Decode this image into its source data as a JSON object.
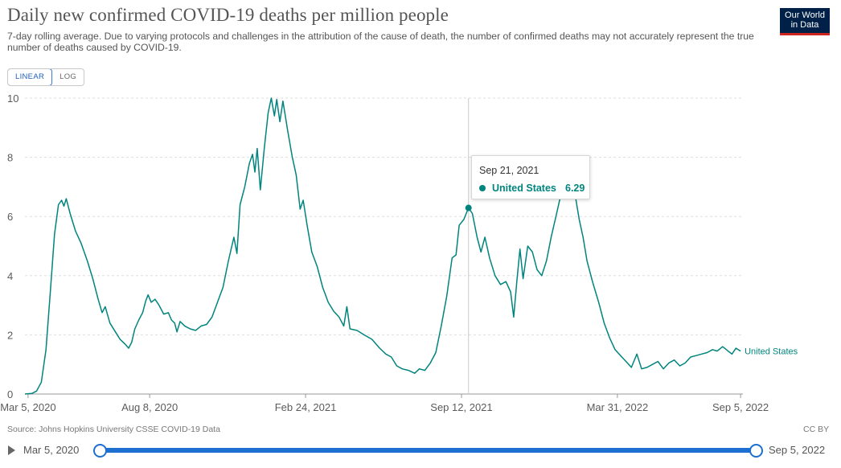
{
  "header": {
    "title": "Daily new confirmed COVID-19 deaths per million people",
    "subtitle": "7-day rolling average. Due to varying protocols and challenges in the attribution of the cause of death, the number of confirmed deaths may not accurately represent the true number of deaths caused by COVID-19.",
    "logo_line1": "Our World",
    "logo_line2": "in Data"
  },
  "controls": {
    "linear_label": "LINEAR",
    "log_label": "LOG",
    "active_scale": "linear"
  },
  "tooltip": {
    "date": "Sep 21, 2021",
    "series": "United States",
    "value": "6.29"
  },
  "footer": {
    "source": "Source: Johns Hopkins University CSSE COVID-19 Data",
    "license": "CC BY"
  },
  "timeline": {
    "start_label": "Mar 5, 2020",
    "end_label": "Sep 5, 2022"
  },
  "colors": {
    "series": "#00847e",
    "grid": "#dddddd",
    "axis": "#5b5b5b",
    "accent_blue": "#1d6fd1"
  },
  "chart_data": {
    "type": "line",
    "title": "Daily new confirmed COVID-19 deaths per million people",
    "xlabel": "",
    "ylabel": "",
    "ylim": [
      0,
      10
    ],
    "yticks": [
      0,
      2,
      4,
      6,
      8,
      10
    ],
    "xlim": [
      "2020-03-01",
      "2022-09-08"
    ],
    "xticks": [
      {
        "date": "2020-03-05",
        "label": "Mar 5, 2020"
      },
      {
        "date": "2020-08-08",
        "label": "Aug 8, 2020"
      },
      {
        "date": "2021-02-24",
        "label": "Feb 24, 2021"
      },
      {
        "date": "2021-09-12",
        "label": "Sep 12, 2021"
      },
      {
        "date": "2022-03-31",
        "label": "Mar 31, 2022"
      },
      {
        "date": "2022-09-05",
        "label": "Sep 5, 2022"
      }
    ],
    "grid": true,
    "highlight": {
      "date": "2021-09-21",
      "value": 6.29
    },
    "series": [
      {
        "name": "United States",
        "end_label": "United States",
        "points": [
          [
            "2020-03-01",
            0
          ],
          [
            "2020-03-10",
            0.02
          ],
          [
            "2020-03-16",
            0.1
          ],
          [
            "2020-03-22",
            0.4
          ],
          [
            "2020-03-28",
            1.5
          ],
          [
            "2020-04-03",
            3.6
          ],
          [
            "2020-04-08",
            5.4
          ],
          [
            "2020-04-13",
            6.4
          ],
          [
            "2020-04-17",
            6.55
          ],
          [
            "2020-04-20",
            6.35
          ],
          [
            "2020-04-23",
            6.6
          ],
          [
            "2020-04-28",
            6.1
          ],
          [
            "2020-05-05",
            5.5
          ],
          [
            "2020-05-12",
            5.1
          ],
          [
            "2020-05-20",
            4.5
          ],
          [
            "2020-05-27",
            3.9
          ],
          [
            "2020-06-03",
            3.2
          ],
          [
            "2020-06-08",
            2.75
          ],
          [
            "2020-06-12",
            2.95
          ],
          [
            "2020-06-18",
            2.4
          ],
          [
            "2020-06-25",
            2.1
          ],
          [
            "2020-07-01",
            1.85
          ],
          [
            "2020-07-07",
            1.7
          ],
          [
            "2020-07-12",
            1.55
          ],
          [
            "2020-07-16",
            1.75
          ],
          [
            "2020-07-20",
            2.2
          ],
          [
            "2020-07-25",
            2.5
          ],
          [
            "2020-07-30",
            2.75
          ],
          [
            "2020-08-03",
            3.15
          ],
          [
            "2020-08-06",
            3.35
          ],
          [
            "2020-08-10",
            3.1
          ],
          [
            "2020-08-15",
            3.2
          ],
          [
            "2020-08-20",
            3.0
          ],
          [
            "2020-08-26",
            2.7
          ],
          [
            "2020-09-01",
            2.75
          ],
          [
            "2020-09-05",
            2.5
          ],
          [
            "2020-09-09",
            2.4
          ],
          [
            "2020-09-12",
            2.1
          ],
          [
            "2020-09-16",
            2.45
          ],
          [
            "2020-09-22",
            2.3
          ],
          [
            "2020-09-29",
            2.2
          ],
          [
            "2020-10-06",
            2.15
          ],
          [
            "2020-10-13",
            2.3
          ],
          [
            "2020-10-20",
            2.35
          ],
          [
            "2020-10-27",
            2.6
          ],
          [
            "2020-11-03",
            3.1
          ],
          [
            "2020-11-10",
            3.6
          ],
          [
            "2020-11-17",
            4.5
          ],
          [
            "2020-11-24",
            5.3
          ],
          [
            "2020-11-28",
            4.75
          ],
          [
            "2020-12-02",
            6.4
          ],
          [
            "2020-12-08",
            7.0
          ],
          [
            "2020-12-14",
            7.8
          ],
          [
            "2020-12-18",
            8.1
          ],
          [
            "2020-12-21",
            7.5
          ],
          [
            "2020-12-24",
            8.3
          ],
          [
            "2020-12-28",
            6.9
          ],
          [
            "2021-01-02",
            8.3
          ],
          [
            "2021-01-07",
            9.5
          ],
          [
            "2021-01-11",
            10.0
          ],
          [
            "2021-01-15",
            9.4
          ],
          [
            "2021-01-18",
            9.95
          ],
          [
            "2021-01-22",
            9.2
          ],
          [
            "2021-01-26",
            9.9
          ],
          [
            "2021-02-01",
            8.9
          ],
          [
            "2021-02-07",
            8.0
          ],
          [
            "2021-02-12",
            7.4
          ],
          [
            "2021-02-17",
            6.25
          ],
          [
            "2021-02-21",
            6.55
          ],
          [
            "2021-02-26",
            5.7
          ],
          [
            "2021-03-04",
            4.8
          ],
          [
            "2021-03-11",
            4.3
          ],
          [
            "2021-03-18",
            3.6
          ],
          [
            "2021-03-25",
            3.1
          ],
          [
            "2021-04-01",
            2.8
          ],
          [
            "2021-04-08",
            2.6
          ],
          [
            "2021-04-14",
            2.3
          ],
          [
            "2021-04-18",
            2.95
          ],
          [
            "2021-04-22",
            2.2
          ],
          [
            "2021-05-01",
            2.15
          ],
          [
            "2021-05-10",
            2.0
          ],
          [
            "2021-05-20",
            1.85
          ],
          [
            "2021-05-30",
            1.55
          ],
          [
            "2021-06-07",
            1.35
          ],
          [
            "2021-06-14",
            1.25
          ],
          [
            "2021-06-21",
            0.95
          ],
          [
            "2021-06-28",
            0.85
          ],
          [
            "2021-07-06",
            0.8
          ],
          [
            "2021-07-14",
            0.7
          ],
          [
            "2021-07-20",
            0.85
          ],
          [
            "2021-07-27",
            0.8
          ],
          [
            "2021-08-03",
            1.05
          ],
          [
            "2021-08-10",
            1.4
          ],
          [
            "2021-08-17",
            2.3
          ],
          [
            "2021-08-24",
            3.3
          ],
          [
            "2021-08-31",
            4.6
          ],
          [
            "2021-09-05",
            4.7
          ],
          [
            "2021-09-09",
            5.7
          ],
          [
            "2021-09-15",
            5.9
          ],
          [
            "2021-09-21",
            6.29
          ],
          [
            "2021-09-26",
            6.1
          ],
          [
            "2021-10-02",
            5.3
          ],
          [
            "2021-10-07",
            4.8
          ],
          [
            "2021-10-12",
            5.3
          ],
          [
            "2021-10-18",
            4.6
          ],
          [
            "2021-10-25",
            4.0
          ],
          [
            "2021-11-01",
            3.7
          ],
          [
            "2021-11-08",
            3.8
          ],
          [
            "2021-11-14",
            3.45
          ],
          [
            "2021-11-18",
            2.6
          ],
          [
            "2021-11-22",
            3.8
          ],
          [
            "2021-11-26",
            4.9
          ],
          [
            "2021-11-30",
            3.9
          ],
          [
            "2021-12-06",
            5.0
          ],
          [
            "2021-12-12",
            4.8
          ],
          [
            "2021-12-18",
            4.2
          ],
          [
            "2021-12-24",
            4.0
          ],
          [
            "2021-12-30",
            4.5
          ],
          [
            "2022-01-05",
            5.3
          ],
          [
            "2022-01-12",
            6.1
          ],
          [
            "2022-01-18",
            6.8
          ],
          [
            "2022-01-24",
            7.6
          ],
          [
            "2022-01-30",
            7.8
          ],
          [
            "2022-02-05",
            6.7
          ],
          [
            "2022-02-10",
            5.9
          ],
          [
            "2022-02-15",
            5.3
          ],
          [
            "2022-02-20",
            4.5
          ],
          [
            "2022-02-27",
            3.8
          ],
          [
            "2022-03-07",
            3.1
          ],
          [
            "2022-03-14",
            2.4
          ],
          [
            "2022-03-21",
            1.9
          ],
          [
            "2022-03-28",
            1.5
          ],
          [
            "2022-04-04",
            1.3
          ],
          [
            "2022-04-11",
            1.1
          ],
          [
            "2022-04-18",
            0.9
          ],
          [
            "2022-04-25",
            1.35
          ],
          [
            "2022-05-01",
            0.85
          ],
          [
            "2022-05-08",
            0.9
          ],
          [
            "2022-05-15",
            1.0
          ],
          [
            "2022-05-22",
            1.1
          ],
          [
            "2022-05-29",
            0.85
          ],
          [
            "2022-06-05",
            1.05
          ],
          [
            "2022-06-12",
            1.15
          ],
          [
            "2022-06-19",
            0.95
          ],
          [
            "2022-06-26",
            1.05
          ],
          [
            "2022-07-03",
            1.25
          ],
          [
            "2022-07-10",
            1.3
          ],
          [
            "2022-07-17",
            1.35
          ],
          [
            "2022-07-24",
            1.4
          ],
          [
            "2022-07-31",
            1.5
          ],
          [
            "2022-08-06",
            1.45
          ],
          [
            "2022-08-13",
            1.6
          ],
          [
            "2022-08-20",
            1.45
          ],
          [
            "2022-08-25",
            1.35
          ],
          [
            "2022-08-30",
            1.55
          ],
          [
            "2022-09-05",
            1.45
          ]
        ]
      }
    ]
  }
}
